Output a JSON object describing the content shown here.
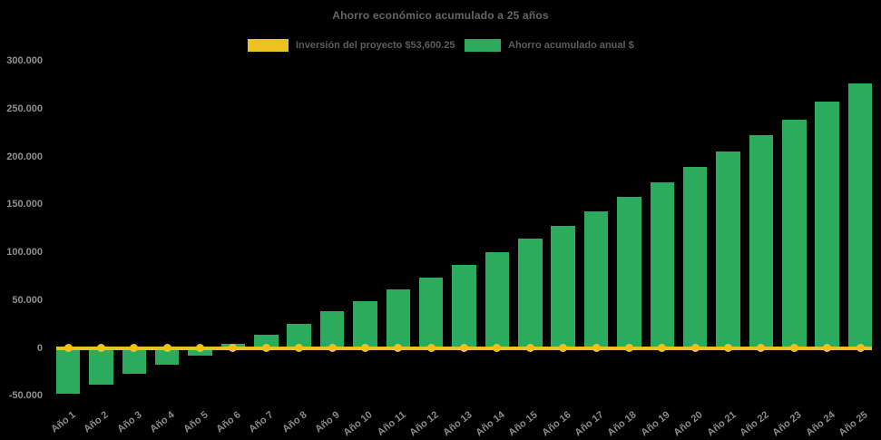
{
  "page": {
    "background": "#000000",
    "text_colors": {
      "title": "#666666",
      "legend": "#5c5c5c",
      "ticks": "#8e8e8e"
    }
  },
  "chart_data": {
    "type": "bar",
    "title": "Ahorro económico acumulado a 25 años",
    "categories": [
      "Año 1",
      "Año 2",
      "Año 3",
      "Año 4",
      "Año 5",
      "Año 6",
      "Año 7",
      "Año 8",
      "Año 9",
      "Año 10",
      "Año 11",
      "Año 12",
      "Año 13",
      "Año 14",
      "Año 15",
      "Año 16",
      "Año 17",
      "Año 18",
      "Año 19",
      "Año 20",
      "Año 21",
      "Año 22",
      "Año 23",
      "Año 24",
      "Año 25"
    ],
    "series": [
      {
        "name": "Inversión del proyecto $53,600.25",
        "type": "line",
        "color": "#ecc31e",
        "marker": "circle",
        "values": [
          0,
          0,
          0,
          0,
          0,
          0,
          0,
          0,
          0,
          0,
          0,
          0,
          0,
          0,
          0,
          0,
          0,
          0,
          0,
          0,
          0,
          0,
          0,
          0,
          0
        ]
      },
      {
        "name": "Ahorro acumulado anual $",
        "type": "bar",
        "color": "#2dab5c",
        "values": [
          -48000,
          -38500,
          -27500,
          -17500,
          -8000,
          4500,
          14000,
          25500,
          38000,
          48500,
          61000,
          74000,
          87000,
          100000,
          114000,
          127500,
          143000,
          157500,
          173000,
          189000,
          205500,
          222500,
          239000,
          257500,
          276500
        ]
      }
    ],
    "ylim": [
      -50000,
      300000
    ],
    "ytick_step": 50000,
    "ytick_labels": [
      "300.000",
      "250.000",
      "200.000",
      "150.000",
      "100.000",
      "50.000",
      "0",
      "-50.000"
    ],
    "xlabel": "",
    "ylabel": "",
    "grid": false,
    "legend_position": "top-center",
    "plot_background": "#000000"
  }
}
